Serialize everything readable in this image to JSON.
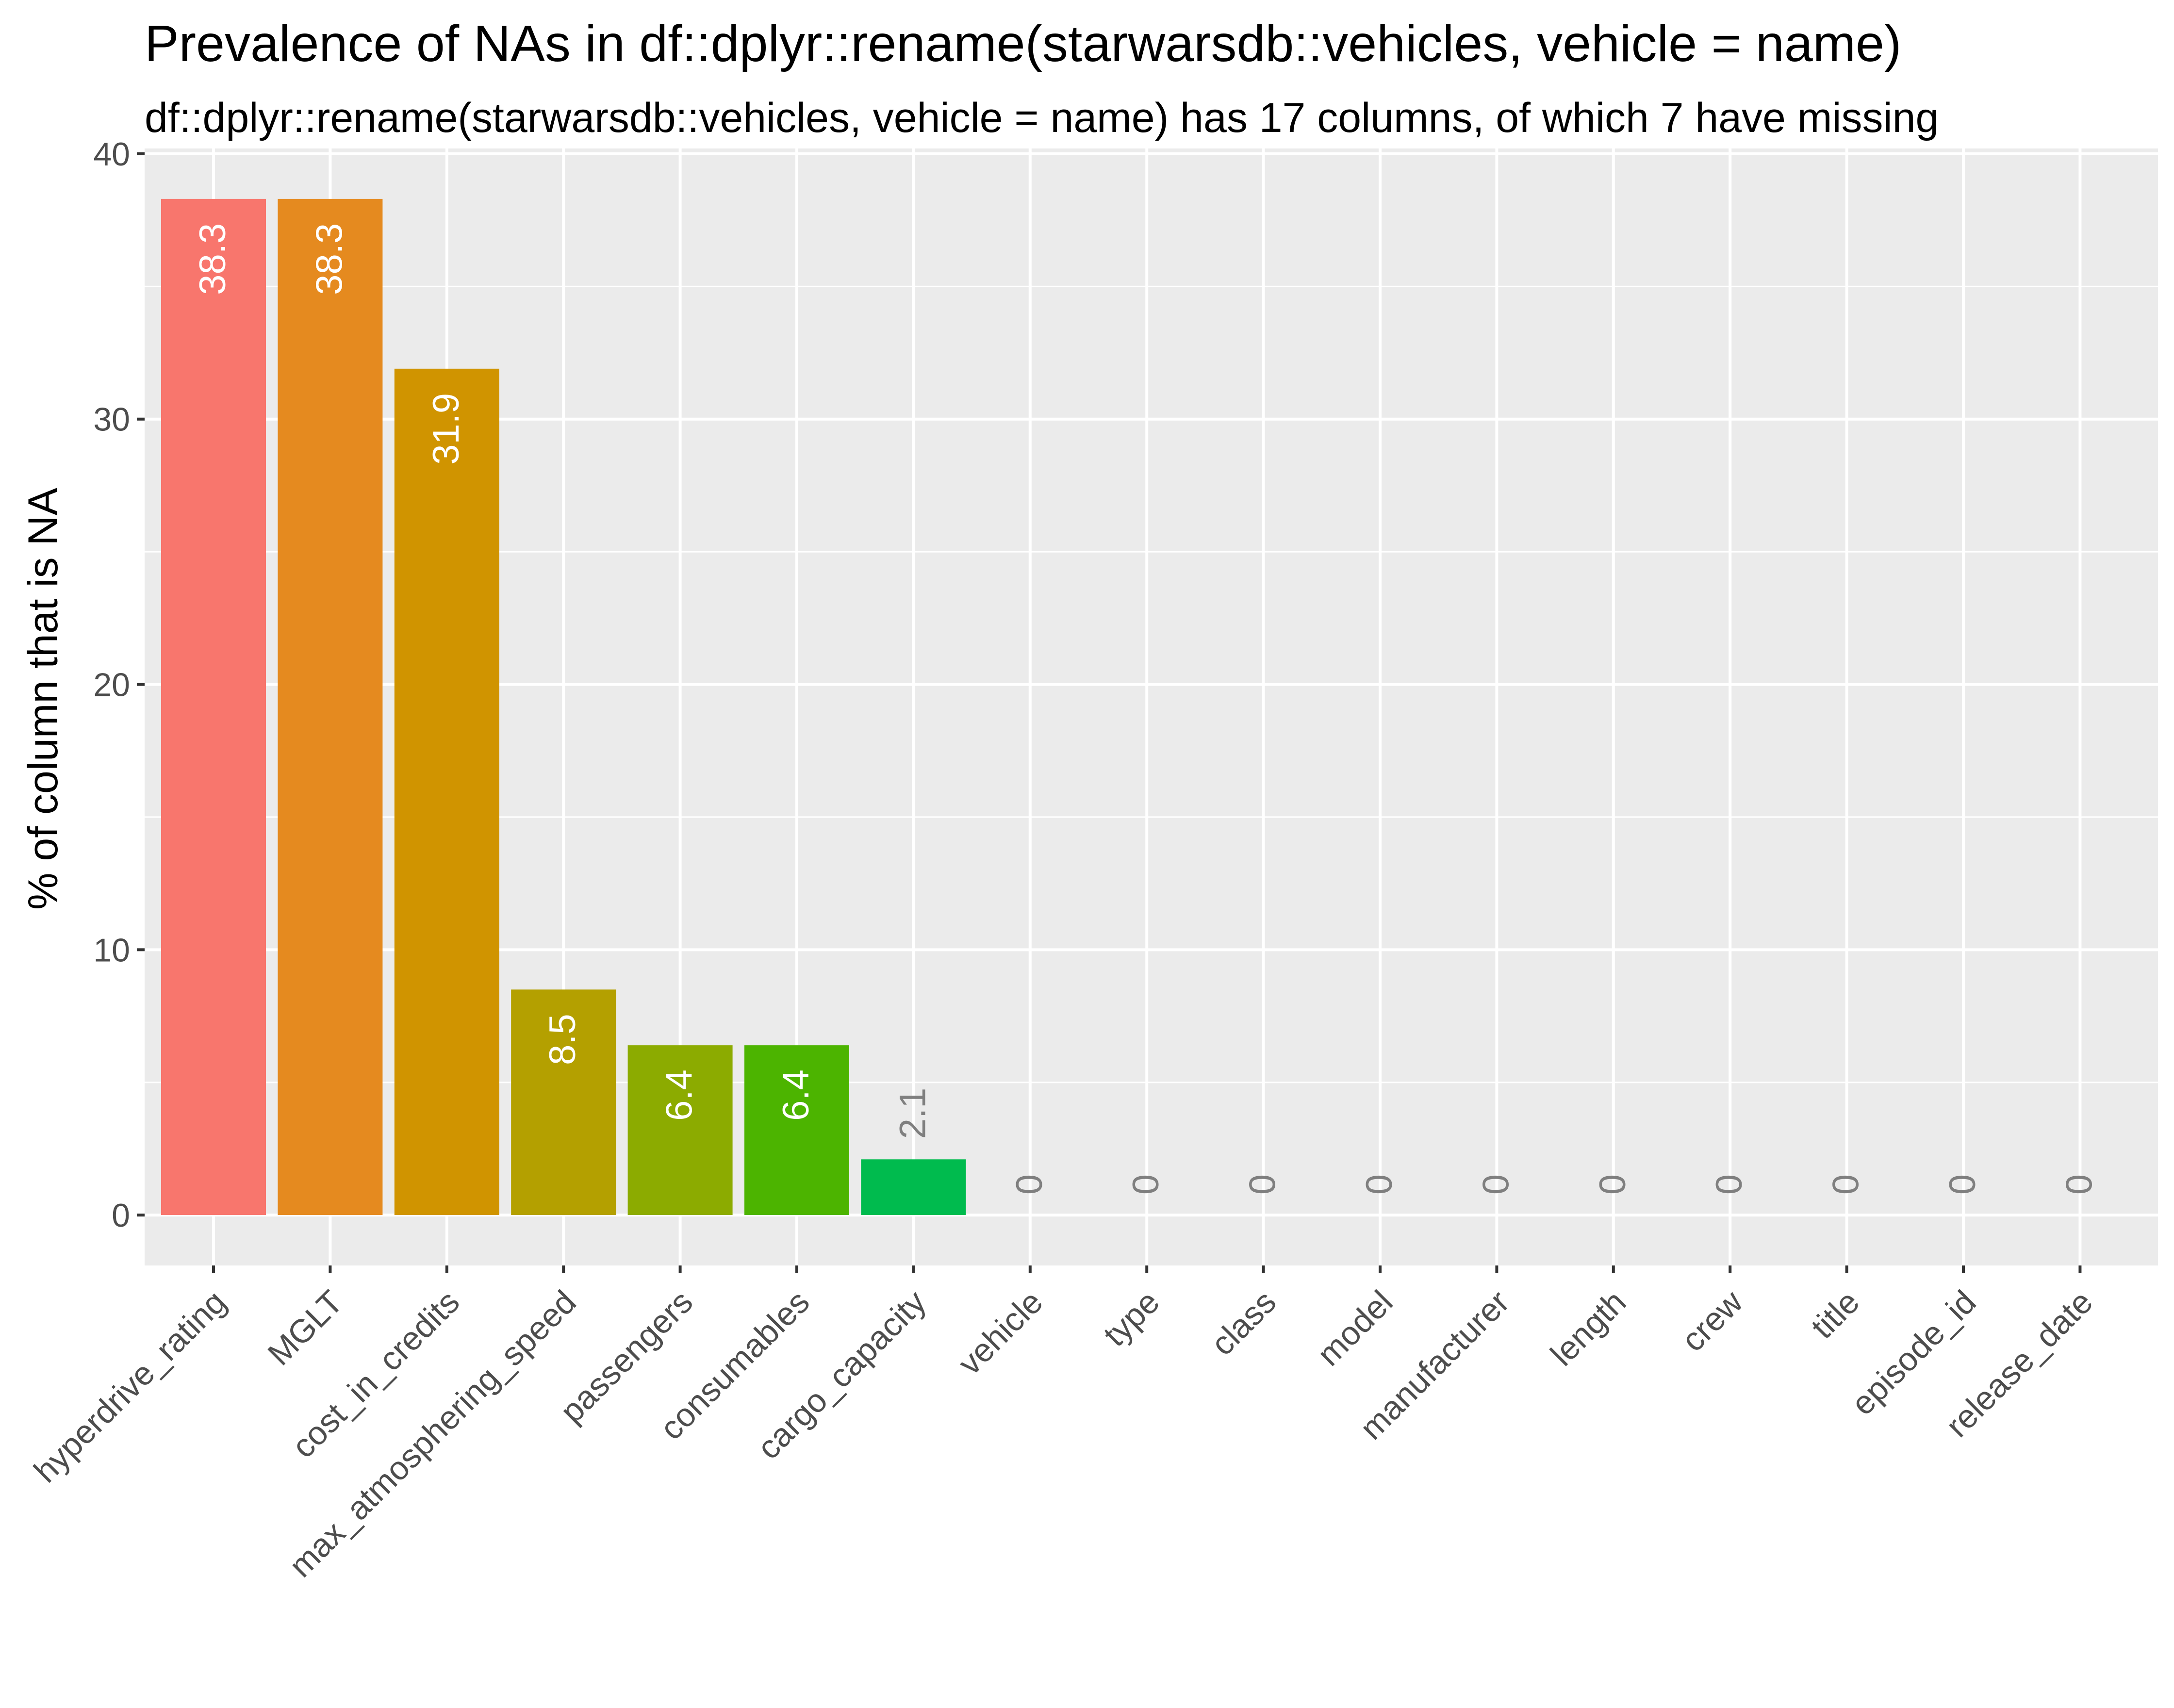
{
  "chart_data": {
    "type": "bar",
    "title": "Prevalence of NAs in df::dplyr::rename(starwarsdb::vehicles, vehicle = name)",
    "subtitle": "df::dplyr::rename(starwarsdb::vehicles, vehicle = name) has 17 columns, of which 7 have missing",
    "xlabel": "",
    "ylabel": "% of column that is NA",
    "ylim": [
      -1.9,
      40.2
    ],
    "y_ticks": [
      "0",
      "10",
      "20",
      "30",
      "40"
    ],
    "y_tick_values": [
      0,
      10,
      20,
      30,
      40
    ],
    "grid": true,
    "categories": [
      "hyperdrive_rating",
      "MGLT",
      "cost_in_credits",
      "max_atmosphering_speed",
      "passengers",
      "consumables",
      "cargo_capacity",
      "vehicle",
      "type",
      "class",
      "model",
      "manufacturer",
      "length",
      "crew",
      "title",
      "episode_id",
      "release_date"
    ],
    "values": [
      38.3,
      38.3,
      31.9,
      8.5,
      6.4,
      6.4,
      2.1,
      0,
      0,
      0,
      0,
      0,
      0,
      0,
      0,
      0,
      0
    ],
    "data_labels": [
      "38.3",
      "38.3",
      "31.9",
      "8.5",
      "6.4",
      "6.4",
      "2.1",
      "0",
      "0",
      "0",
      "0",
      "0",
      "0",
      "0",
      "0",
      "0",
      "0"
    ],
    "colors": [
      "#F8766D",
      "#E58A1F",
      "#D09400",
      "#B4A000",
      "#8CAB00",
      "#4CB400",
      "#00BB4E",
      "#00BE6C",
      "#00C1A8",
      "#00BFC4",
      "#00B8E5",
      "#00A9FF",
      "#8F91FF",
      "#C77CFF",
      "#E76BF3",
      "#FF61C9",
      "#FF6C92"
    ],
    "panel_background": "#EBEBEB",
    "gridline_color": "#FFFFFF",
    "label_color_inside": "#FFFFFF",
    "label_color_outside": "#7F7F7F"
  }
}
